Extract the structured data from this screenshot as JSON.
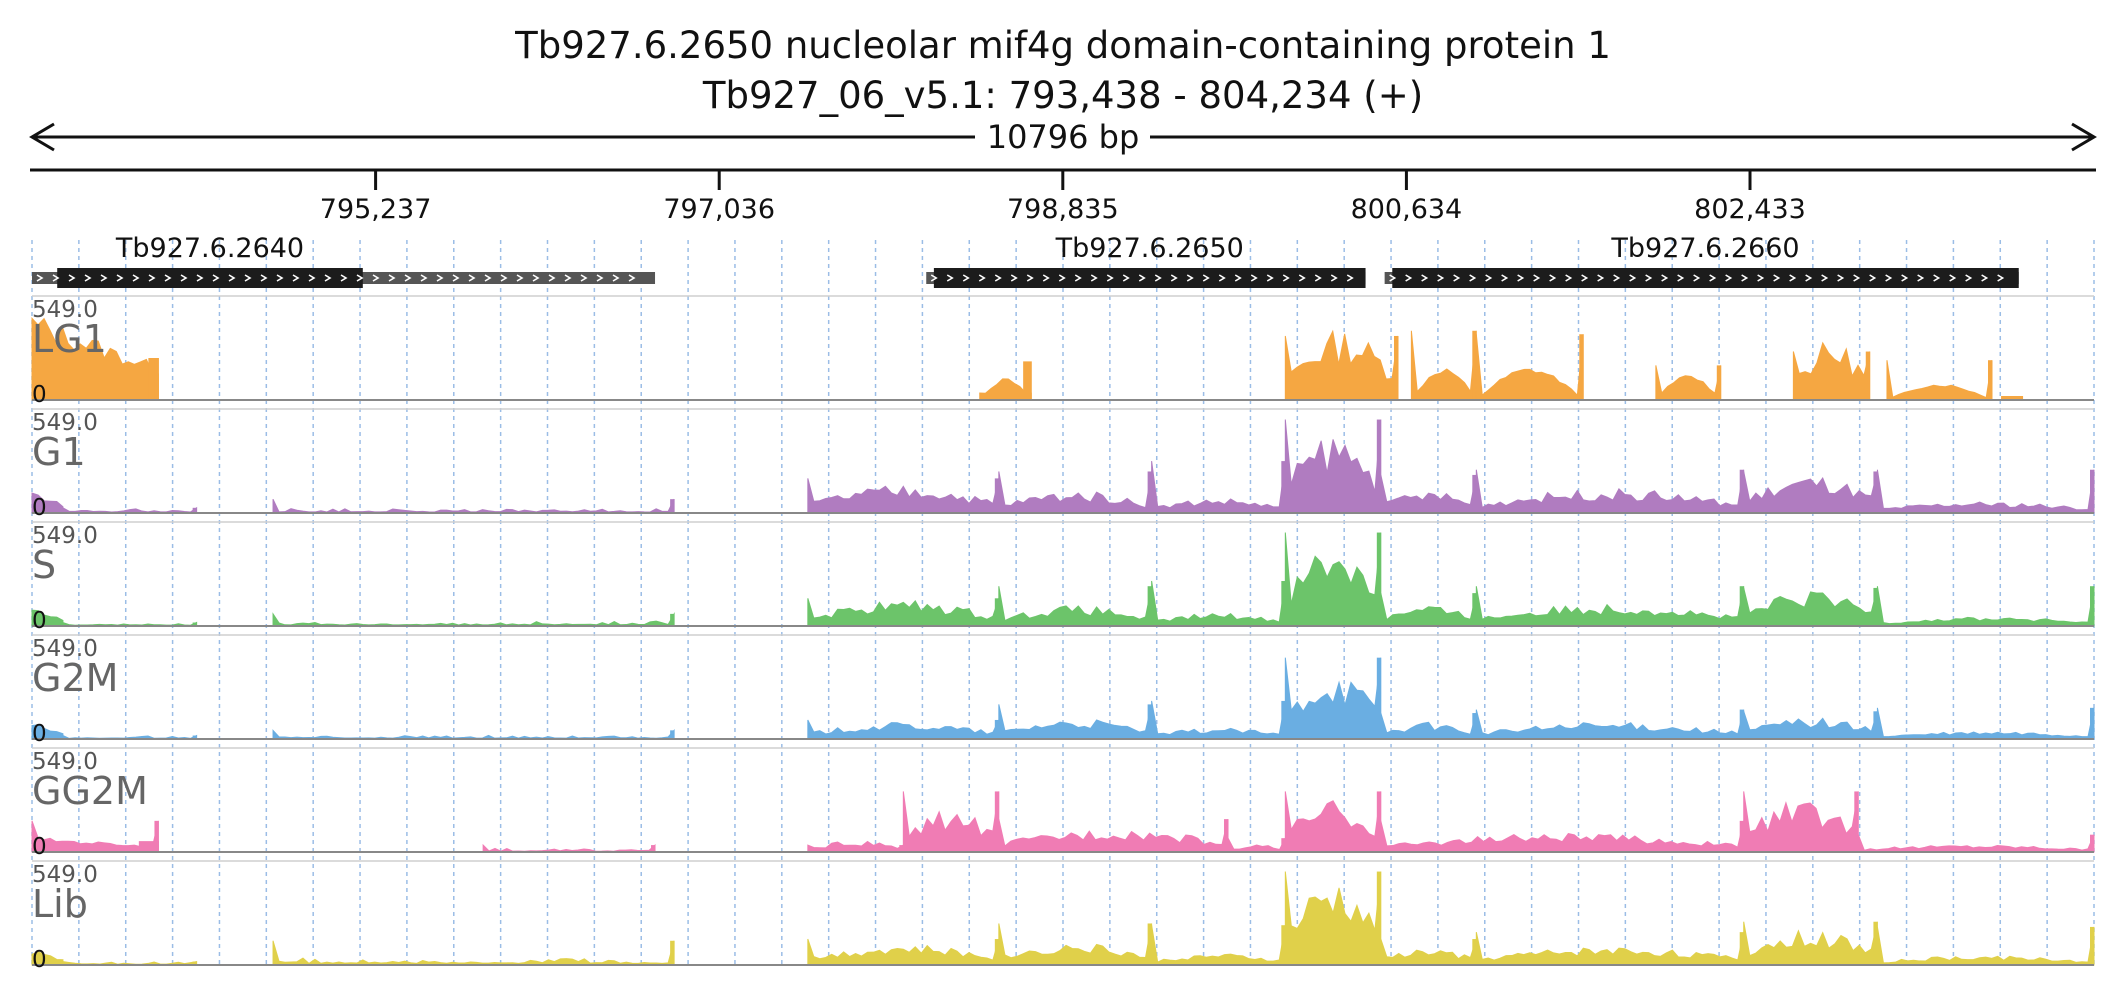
{
  "title": "Tb927.6.2650  nucleolar mif4g domain-containing protein 1",
  "subtitle": "Tb927_06_v5.1: 793,438 - 804,234 (+)",
  "span_label": "10796 bp",
  "chart_data": {
    "type": "area",
    "region": {
      "chrom": "Tb927_06_v5.1",
      "start": 793438,
      "end": 804234,
      "strand": "+"
    },
    "ruler_ticks": [
      795237,
      797036,
      798835,
      800634,
      802433
    ],
    "ruler_tick_labels": [
      "795,237",
      "797,036",
      "798,835",
      "800,634",
      "802,433"
    ],
    "grid": true,
    "genes": [
      {
        "name": "Tb927.6.2640",
        "start": 793438,
        "end": 796700,
        "cds_start": 793570,
        "cds_end": 795170
      },
      {
        "name": "Tb927.6.2650",
        "start": 798120,
        "end": 800420,
        "cds_start": 798160,
        "cds_end": 800420
      },
      {
        "name": "Tb927.6.2660",
        "start": 800520,
        "end": 803840,
        "cds_start": 800560,
        "cds_end": 803840
      }
    ],
    "ylim": [
      0,
      549.0
    ],
    "ymax_label": "549.0",
    "ymin_label": "0",
    "series": [
      {
        "name": "LG1",
        "color": "#f5a742",
        "segments": [
          {
            "start": 793438,
            "end": 794100,
            "peak": 470,
            "shape": "decay",
            "edge": 150
          },
          {
            "start": 794050,
            "end": 794100,
            "peak": 240,
            "shape": "flat",
            "edge": 240
          },
          {
            "start": 798400,
            "end": 798670,
            "peak": 120,
            "shape": "hump",
            "edge": 40
          },
          {
            "start": 798630,
            "end": 798670,
            "peak": 220,
            "shape": "flat",
            "edge": 220
          },
          {
            "start": 800000,
            "end": 800590,
            "peak": 380,
            "shape": "noisy",
            "edge": 370
          },
          {
            "start": 800660,
            "end": 801000,
            "peak": 180,
            "shape": "hump",
            "edge": 400
          },
          {
            "start": 801000,
            "end": 801560,
            "peak": 180,
            "shape": "hump",
            "edge": 380
          },
          {
            "start": 801940,
            "end": 802280,
            "peak": 140,
            "shape": "hump",
            "edge": 200
          },
          {
            "start": 802660,
            "end": 803060,
            "peak": 320,
            "shape": "noisy",
            "edge": 280
          },
          {
            "start": 803150,
            "end": 803700,
            "peak": 90,
            "shape": "hump",
            "edge": 230
          },
          {
            "start": 803750,
            "end": 803860,
            "peak": 20,
            "shape": "flat",
            "edge": 20
          }
        ]
      },
      {
        "name": "G1",
        "color": "#b07cc0",
        "segments": [
          {
            "start": 793438,
            "end": 793600,
            "peak": 120,
            "shape": "decay",
            "edge": 20
          },
          {
            "start": 793600,
            "end": 794300,
            "peak": 40,
            "shape": "low",
            "edge": 30
          },
          {
            "start": 794700,
            "end": 796800,
            "peak": 40,
            "shape": "low",
            "edge": 80
          },
          {
            "start": 797500,
            "end": 798500,
            "peak": 150,
            "shape": "noisy",
            "edge": 200
          },
          {
            "start": 798500,
            "end": 799300,
            "peak": 120,
            "shape": "noisy",
            "edge": 240
          },
          {
            "start": 799300,
            "end": 800000,
            "peak": 80,
            "shape": "noisy",
            "edge": 300
          },
          {
            "start": 800000,
            "end": 800500,
            "peak": 430,
            "shape": "noisy",
            "edge": 540
          },
          {
            "start": 800500,
            "end": 801000,
            "peak": 120,
            "shape": "noisy",
            "edge": 220
          },
          {
            "start": 801000,
            "end": 802400,
            "peak": 130,
            "shape": "noisy",
            "edge": 250
          },
          {
            "start": 802400,
            "end": 803100,
            "peak": 200,
            "shape": "noisy",
            "edge": 240
          },
          {
            "start": 803100,
            "end": 804234,
            "peak": 60,
            "shape": "noisy",
            "edge": 250
          }
        ]
      },
      {
        "name": "S",
        "color": "#6cc46a",
        "segments": [
          {
            "start": 793438,
            "end": 793600,
            "peak": 100,
            "shape": "decay",
            "edge": 20
          },
          {
            "start": 793600,
            "end": 794300,
            "peak": 30,
            "shape": "low",
            "edge": 20
          },
          {
            "start": 794700,
            "end": 796800,
            "peak": 40,
            "shape": "low",
            "edge": 70
          },
          {
            "start": 797500,
            "end": 798500,
            "peak": 140,
            "shape": "noisy",
            "edge": 160
          },
          {
            "start": 798500,
            "end": 799300,
            "peak": 110,
            "shape": "noisy",
            "edge": 230
          },
          {
            "start": 799300,
            "end": 800000,
            "peak": 70,
            "shape": "noisy",
            "edge": 260
          },
          {
            "start": 800000,
            "end": 800500,
            "peak": 460,
            "shape": "noisy",
            "edge": 540
          },
          {
            "start": 800500,
            "end": 801000,
            "peak": 110,
            "shape": "noisy",
            "edge": 190
          },
          {
            "start": 801000,
            "end": 802400,
            "peak": 120,
            "shape": "noisy",
            "edge": 230
          },
          {
            "start": 802400,
            "end": 803100,
            "peak": 190,
            "shape": "noisy",
            "edge": 220
          },
          {
            "start": 803100,
            "end": 804234,
            "peak": 50,
            "shape": "noisy",
            "edge": 230
          }
        ]
      },
      {
        "name": "G2M",
        "color": "#6aaee2",
        "segments": [
          {
            "start": 793438,
            "end": 793600,
            "peak": 90,
            "shape": "decay",
            "edge": 20
          },
          {
            "start": 793600,
            "end": 794300,
            "peak": 25,
            "shape": "low",
            "edge": 20
          },
          {
            "start": 794700,
            "end": 796800,
            "peak": 30,
            "shape": "low",
            "edge": 50
          },
          {
            "start": 797500,
            "end": 798500,
            "peak": 90,
            "shape": "noisy",
            "edge": 110
          },
          {
            "start": 798500,
            "end": 799300,
            "peak": 110,
            "shape": "noisy",
            "edge": 200
          },
          {
            "start": 799300,
            "end": 800000,
            "peak": 60,
            "shape": "noisy",
            "edge": 220
          },
          {
            "start": 800000,
            "end": 800500,
            "peak": 380,
            "shape": "noisy",
            "edge": 470
          },
          {
            "start": 800500,
            "end": 801000,
            "peak": 90,
            "shape": "noisy",
            "edge": 150
          },
          {
            "start": 801000,
            "end": 802400,
            "peak": 90,
            "shape": "noisy",
            "edge": 170
          },
          {
            "start": 802400,
            "end": 803100,
            "peak": 120,
            "shape": "noisy",
            "edge": 160
          },
          {
            "start": 803100,
            "end": 804234,
            "peak": 40,
            "shape": "noisy",
            "edge": 180
          }
        ]
      },
      {
        "name": "GG2M",
        "color": "#f07cb4",
        "segments": [
          {
            "start": 793438,
            "end": 794100,
            "peak": 80,
            "shape": "decay",
            "edge": 180
          },
          {
            "start": 794000,
            "end": 794100,
            "peak": 60,
            "shape": "flat",
            "edge": 60
          },
          {
            "start": 795800,
            "end": 796700,
            "peak": 30,
            "shape": "low",
            "edge": 40
          },
          {
            "start": 797500,
            "end": 798000,
            "peak": 60,
            "shape": "noisy",
            "edge": 40
          },
          {
            "start": 798000,
            "end": 798500,
            "peak": 230,
            "shape": "noisy",
            "edge": 350
          },
          {
            "start": 798500,
            "end": 799700,
            "peak": 130,
            "shape": "noisy",
            "edge": 190
          },
          {
            "start": 799700,
            "end": 800000,
            "peak": 40,
            "shape": "noisy",
            "edge": 80
          },
          {
            "start": 800000,
            "end": 800500,
            "peak": 280,
            "shape": "noisy",
            "edge": 350
          },
          {
            "start": 800500,
            "end": 802400,
            "peak": 100,
            "shape": "noisy",
            "edge": 180
          },
          {
            "start": 802400,
            "end": 803000,
            "peak": 280,
            "shape": "noisy",
            "edge": 350
          },
          {
            "start": 803000,
            "end": 804234,
            "peak": 40,
            "shape": "noisy",
            "edge": 100
          }
        ]
      },
      {
        "name": "Lib",
        "color": "#e0d04a",
        "segments": [
          {
            "start": 793438,
            "end": 793600,
            "peak": 80,
            "shape": "decay",
            "edge": 30
          },
          {
            "start": 793600,
            "end": 794300,
            "peak": 30,
            "shape": "low",
            "edge": 20
          },
          {
            "start": 794700,
            "end": 796800,
            "peak": 60,
            "shape": "low",
            "edge": 140
          },
          {
            "start": 797500,
            "end": 798500,
            "peak": 110,
            "shape": "noisy",
            "edge": 150
          },
          {
            "start": 798500,
            "end": 799300,
            "peak": 120,
            "shape": "noisy",
            "edge": 240
          },
          {
            "start": 799300,
            "end": 800000,
            "peak": 60,
            "shape": "noisy",
            "edge": 230
          },
          {
            "start": 800000,
            "end": 800500,
            "peak": 460,
            "shape": "noisy",
            "edge": 540
          },
          {
            "start": 800500,
            "end": 801000,
            "peak": 90,
            "shape": "noisy",
            "edge": 150
          },
          {
            "start": 801000,
            "end": 802400,
            "peak": 100,
            "shape": "noisy",
            "edge": 190
          },
          {
            "start": 802400,
            "end": 803100,
            "peak": 190,
            "shape": "noisy",
            "edge": 250
          },
          {
            "start": 803100,
            "end": 804234,
            "peak": 50,
            "shape": "noisy",
            "edge": 220
          }
        ]
      }
    ]
  }
}
